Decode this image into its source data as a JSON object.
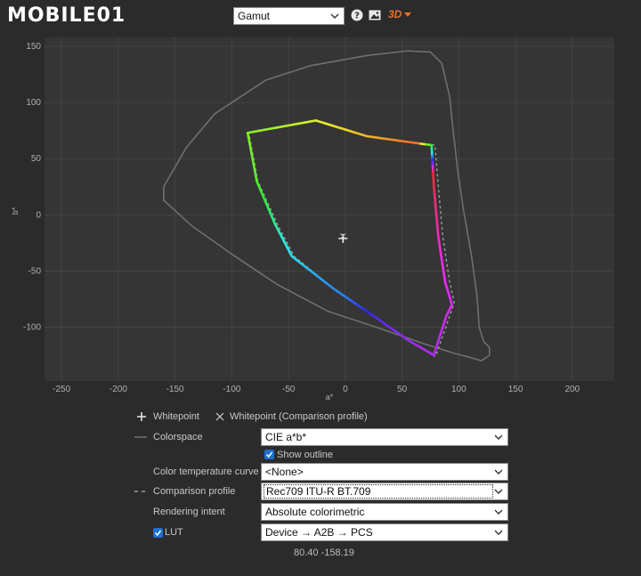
{
  "header": {
    "logo_text": "MOBILE01",
    "view_select": "Gamut",
    "help_icon": "help-circle-icon",
    "image_icon": "image-icon",
    "mode_button": "3D"
  },
  "chart_data": {
    "type": "line",
    "xlabel": "a*",
    "ylabel": "b*",
    "xlim": [
      -265,
      237
    ],
    "ylim": [
      -148,
      158
    ],
    "xticks": [
      -250,
      -200,
      -150,
      -100,
      -50,
      0,
      50,
      100,
      150,
      200
    ],
    "yticks": [
      -100,
      -50,
      0,
      50,
      100,
      150
    ],
    "grid": true,
    "series": [
      {
        "name": "Colorspace",
        "style": "solid",
        "color": "#6f6f6f",
        "points": [
          [
            -160,
            25
          ],
          [
            -140,
            60
          ],
          [
            -115,
            90
          ],
          [
            -70,
            120
          ],
          [
            -30,
            133
          ],
          [
            20,
            142
          ],
          [
            55,
            146
          ],
          [
            75,
            145
          ],
          [
            85,
            135
          ],
          [
            92,
            105
          ],
          [
            95,
            75
          ],
          [
            99,
            40
          ],
          [
            104,
            5
          ],
          [
            111,
            -35
          ],
          [
            116,
            -72
          ],
          [
            118,
            -100
          ],
          [
            122,
            -113
          ],
          [
            127,
            -118
          ],
          [
            127,
            -125
          ],
          [
            120,
            -130
          ],
          [
            110,
            -127
          ],
          [
            95,
            -123
          ],
          [
            70,
            -115
          ],
          [
            30,
            -101
          ],
          [
            -15,
            -86
          ],
          [
            -60,
            -62
          ],
          [
            -100,
            -35
          ],
          [
            -135,
            -10
          ],
          [
            -160,
            13
          ],
          [
            -160,
            25
          ]
        ]
      },
      {
        "name": "Comparison profile",
        "style": "dashed",
        "color": "#9a9a9a",
        "points": [
          [
            -85,
            73
          ],
          [
            -25,
            84
          ],
          [
            20,
            70
          ],
          [
            79,
            62
          ],
          [
            82,
            25
          ],
          [
            86,
            -20
          ],
          [
            92,
            -60
          ],
          [
            96,
            -78
          ],
          [
            92,
            -90
          ],
          [
            81,
            -122
          ],
          [
            79,
            -126
          ],
          [
            55,
            -112
          ],
          [
            22,
            -88
          ],
          [
            -10,
            -66
          ],
          [
            -45,
            -37
          ],
          [
            -60,
            -8
          ],
          [
            -77,
            30
          ],
          [
            -85,
            73
          ]
        ]
      },
      {
        "name": "Gamut",
        "style": "gradient",
        "points": [
          [
            -86,
            73
          ],
          [
            -26,
            84
          ],
          [
            19,
            70
          ],
          [
            76,
            62
          ],
          [
            78,
            25
          ],
          [
            82,
            -20
          ],
          [
            88,
            -60
          ],
          [
            94,
            -80
          ],
          [
            89,
            -90
          ],
          [
            78,
            -125
          ],
          [
            56,
            -112
          ],
          [
            22,
            -88
          ],
          [
            -10,
            -66
          ],
          [
            -47,
            -37
          ],
          [
            -62,
            -8
          ],
          [
            -78,
            30
          ],
          [
            -86,
            73
          ]
        ]
      }
    ],
    "whitepoint": [
      -2,
      -21
    ],
    "whitepoint_comparison": [
      -2,
      -19
    ]
  },
  "legend": {
    "whitepoint": "Whitepoint",
    "whitepoint_comparison": "Whitepoint (Comparison profile)"
  },
  "controls": {
    "colorspace_label": "Colorspace",
    "colorspace_value": "CIE a*b*",
    "show_outline_label": "Show outline",
    "show_outline_checked": true,
    "temp_curve_label": "Color temperature curve",
    "temp_curve_value": "<None>",
    "comparison_label": "Comparison profile",
    "comparison_value": "Rec709 ITU-R BT.709",
    "intent_label": "Rendering intent",
    "intent_value": "Absolute colorimetric",
    "lut_label": "LUT",
    "lut_checked": true,
    "lut_value": "Device → A2B → PCS"
  },
  "readout": "80.40 -158.19",
  "colors": {
    "accent": "#e8702a",
    "checkbox": "#1f6fd1",
    "plot_bg": "#353535",
    "grid": "#444444"
  }
}
